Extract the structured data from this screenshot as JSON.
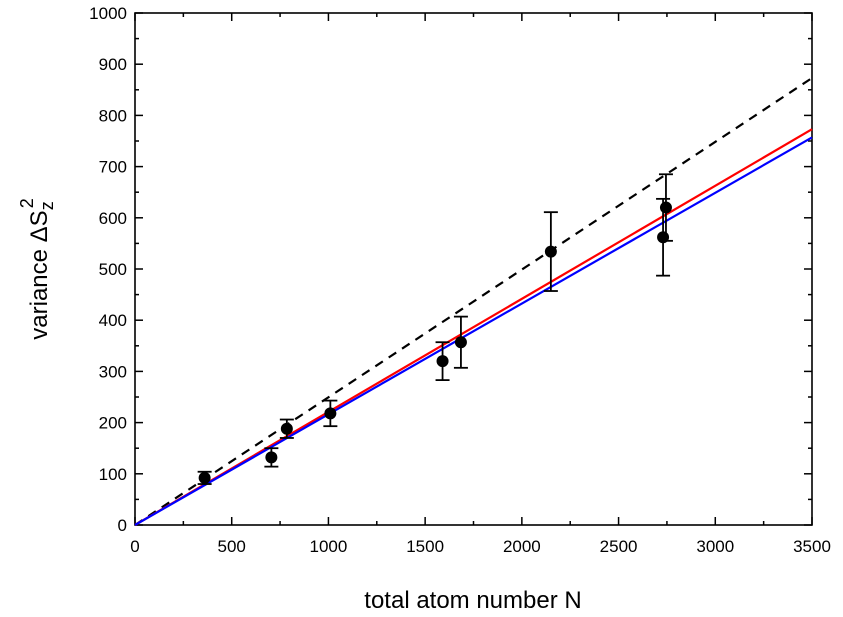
{
  "chart_data": {
    "type": "scatter",
    "xlabel": "total atom number N",
    "ylabel": {
      "text": "variance ",
      "delta": "Δ",
      "symbol": "S",
      "subscript": "z",
      "superscript": "2"
    },
    "xlim": [
      0,
      3500
    ],
    "ylim": [
      0,
      1000
    ],
    "x_ticks": [
      "0",
      "500",
      "1000",
      "1500",
      "2000",
      "2500",
      "3000",
      "3500"
    ],
    "y_ticks": [
      "0",
      "100",
      "200",
      "300",
      "400",
      "500",
      "600",
      "700",
      "800",
      "900",
      "1000"
    ],
    "grid": false,
    "points": [
      {
        "x": 360,
        "y": 92,
        "err": 12
      },
      {
        "x": 705,
        "y": 132,
        "err": 18
      },
      {
        "x": 785,
        "y": 188,
        "err": 18
      },
      {
        "x": 1010,
        "y": 218,
        "err": 25
      },
      {
        "x": 1590,
        "y": 320,
        "err": 37
      },
      {
        "x": 1685,
        "y": 357,
        "err": 50
      },
      {
        "x": 2150,
        "y": 534,
        "err": 77
      },
      {
        "x": 2730,
        "y": 562,
        "err": 75
      },
      {
        "x": 2745,
        "y": 620,
        "err": 65
      }
    ],
    "lines": [
      {
        "style": "dashed",
        "color": "#000000",
        "x": [
          0,
          3500
        ],
        "y": [
          0,
          873
        ]
      },
      {
        "style": "solid",
        "color": "#ff0000",
        "x": [
          0,
          3500
        ],
        "y": [
          0,
          773
        ]
      },
      {
        "style": "solid",
        "color": "#0000ff",
        "x": [
          0,
          3500
        ],
        "y": [
          0,
          757
        ]
      }
    ]
  }
}
